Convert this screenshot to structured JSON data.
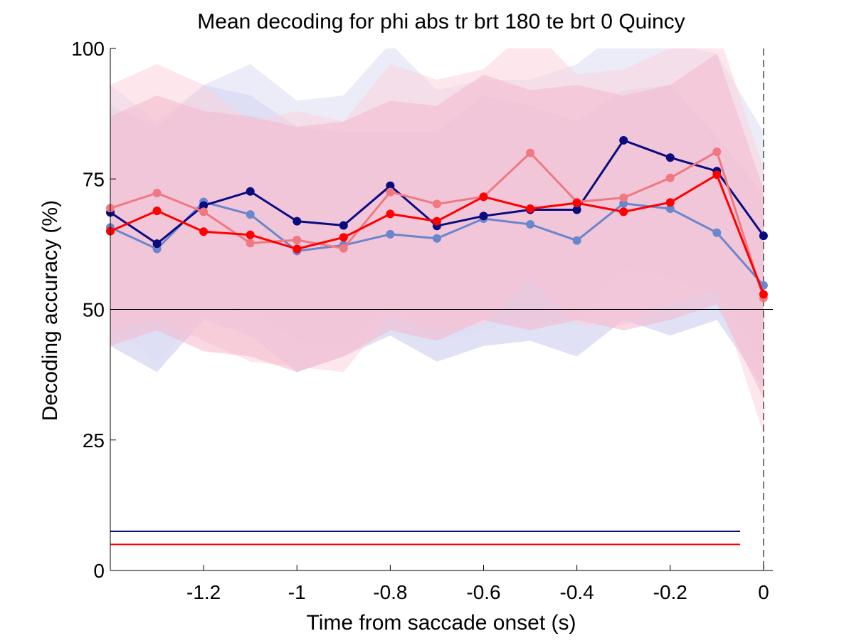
{
  "chart_data": {
    "type": "line",
    "title": "Mean decoding for phi abs tr brt 180 te brt 0  Quincy",
    "xlabel": "Time from saccade onset (s)",
    "ylabel": "Decoding accuracy (%)",
    "xlim": [
      -1.4,
      0.02
    ],
    "ylim": [
      0,
      100
    ],
    "x_ticks": [
      -1.2,
      -1,
      -0.8,
      -0.6,
      -0.4,
      -0.2,
      0
    ],
    "x_tick_labels": [
      "-1.2",
      "-1",
      "-0.8",
      "-0.6",
      "-0.4",
      "-0.2",
      "0"
    ],
    "y_ticks": [
      0,
      25,
      50,
      75,
      100
    ],
    "y_tick_labels": [
      "0",
      "25",
      "50",
      "75",
      "100"
    ],
    "grid": false,
    "x": [
      -1.4,
      -1.3,
      -1.2,
      -1.1,
      -1.0,
      -0.9,
      -0.8,
      -0.7,
      -0.6,
      -0.5,
      -0.4,
      -0.3,
      -0.2,
      -0.1,
      0.0
    ],
    "series": [
      {
        "color": "#6a86cc",
        "values": [
          65.7,
          61.6,
          70.6,
          68.2,
          61.2,
          62.3,
          64.4,
          63.6,
          67.4,
          66.3,
          63.2,
          70.3,
          69.3,
          64.7,
          54.6
        ],
        "band_lower": [
          43,
          38,
          48,
          45,
          38,
          41,
          45,
          40,
          43,
          44,
          41,
          48,
          45,
          48,
          35
        ],
        "band_upper": [
          89,
          85,
          93,
          91,
          85,
          84,
          84,
          84,
          91,
          89,
          86,
          92,
          93,
          83,
          72
        ],
        "band_color": "#c8c8ee"
      },
      {
        "color": "#0b0b80",
        "values": [
          68.6,
          62.6,
          69.9,
          72.6,
          66.9,
          66.1,
          73.7,
          66.0,
          67.9,
          69.1,
          69.1,
          82.4,
          79.1,
          76.5,
          64.1
        ],
        "band_lower": [
          46,
          40,
          49,
          50,
          44,
          43,
          51,
          44,
          46,
          48,
          47,
          58,
          56,
          53,
          40
        ],
        "band_upper": [
          93,
          86,
          93,
          97,
          90,
          91,
          101,
          92,
          94,
          94,
          97,
          104,
          101,
          99,
          84
        ],
        "band_color": "#dcdcf4"
      },
      {
        "color": "#f07880",
        "values": [
          69.4,
          72.3,
          68.7,
          62.7,
          63.3,
          61.7,
          72.5,
          70.2,
          71.6,
          80.0,
          70.6,
          71.4,
          75.2,
          80.2,
          52.2
        ],
        "band_lower": [
          46,
          48,
          44,
          40,
          39,
          38,
          49,
          46,
          47,
          56,
          47,
          47,
          51,
          54,
          26
        ],
        "band_upper": [
          93,
          97,
          93,
          86,
          88,
          86,
          97,
          94,
          96,
          104,
          95,
          96,
          100,
          104,
          77
        ],
        "band_color": "#fbd4dc"
      },
      {
        "color": "#ff0000",
        "values": [
          65.0,
          68.9,
          64.9,
          64.3,
          61.6,
          63.8,
          68.3,
          66.9,
          71.6,
          69.3,
          70.4,
          68.7,
          70.5,
          75.8,
          52.9
        ],
        "band_lower": [
          43,
          46,
          42,
          41,
          38,
          41,
          46,
          44,
          48,
          46,
          48,
          46,
          48,
          51,
          33
        ],
        "band_upper": [
          87,
          91,
          88,
          87,
          85,
          86,
          90,
          89,
          95,
          92,
          93,
          91,
          93,
          99,
          73
        ],
        "band_color": "#f4b8cc"
      }
    ],
    "reference_lines": [
      {
        "orientation": "horizontal",
        "y": 50,
        "color": "#000000",
        "style": "solid"
      },
      {
        "orientation": "vertical",
        "x": 0,
        "color": "#000000",
        "style": "dashed"
      }
    ],
    "significance_bars": [
      {
        "y": 7.5,
        "x_start": -1.4,
        "x_end": -0.05,
        "color": "#0b0b80"
      },
      {
        "y": 5.0,
        "x_start": -1.4,
        "x_end": -0.05,
        "color": "#ff0000"
      }
    ]
  }
}
